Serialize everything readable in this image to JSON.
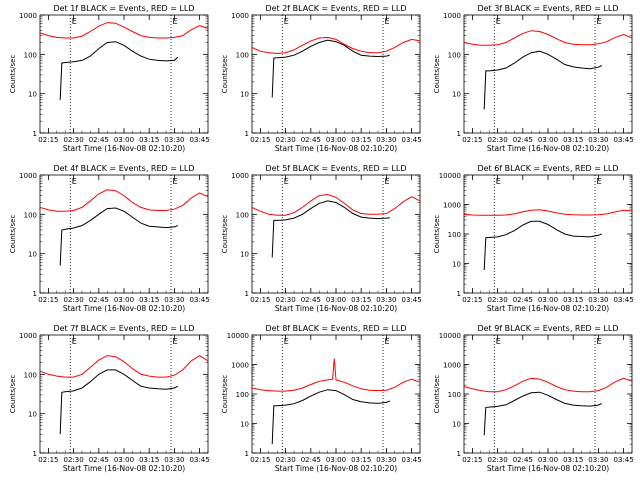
{
  "figure": {
    "background": "#ffffff",
    "colors": {
      "events": "#000000",
      "lld": "#ff0000",
      "axis": "#000000",
      "marker": "#000000"
    },
    "xlabel": "Start Time (16-Nov-08 02:10:20)",
    "ylabel": "Counts/sec",
    "xticks": [
      "02:15",
      "02:30",
      "02:45",
      "03:00",
      "03:15",
      "03:30",
      "03:45"
    ],
    "marker_labels": [
      "E",
      "E"
    ]
  },
  "chart_data": [
    {
      "type": "line",
      "title": "Det 1f BLACK = Events, RED = LLD",
      "y_scale": "log",
      "ylim": [
        1,
        1000
      ],
      "yticks": [
        "1",
        "10",
        "100",
        "1000"
      ],
      "xlim": [
        "02:10",
        "03:50"
      ],
      "event_markers": [
        "02:28",
        "03:28"
      ],
      "series": [
        {
          "name": "LLD",
          "color": "#ff0000",
          "x": [
            "02:10",
            "02:15",
            "02:20",
            "02:25",
            "02:30",
            "02:35",
            "02:40",
            "02:45",
            "02:50",
            "02:55",
            "03:00",
            "03:05",
            "03:10",
            "03:15",
            "03:20",
            "03:25",
            "03:30",
            "03:35",
            "03:40",
            "03:45",
            "03:50"
          ],
          "values": [
            350,
            300,
            270,
            260,
            260,
            290,
            380,
            520,
            640,
            620,
            490,
            380,
            300,
            270,
            260,
            260,
            270,
            300,
            420,
            540,
            450
          ]
        },
        {
          "name": "Events",
          "color": "#000000",
          "x": [
            "02:22",
            "02:23",
            "02:25",
            "02:30",
            "02:35",
            "02:40",
            "02:45",
            "02:50",
            "02:55",
            "03:00",
            "03:05",
            "03:10",
            "03:15",
            "03:20",
            "03:25",
            "03:30",
            "03:32"
          ],
          "values": [
            7,
            60,
            62,
            65,
            70,
            90,
            140,
            200,
            210,
            170,
            120,
            90,
            75,
            70,
            68,
            70,
            85
          ]
        }
      ]
    },
    {
      "type": "line",
      "title": "Det 2f BLACK = Events, RED = LLD",
      "y_scale": "log",
      "ylim": [
        1,
        1000
      ],
      "yticks": [
        "1",
        "10",
        "100",
        "1000"
      ],
      "xlim": [
        "02:10",
        "03:50"
      ],
      "event_markers": [
        "02:28",
        "03:28"
      ],
      "series": [
        {
          "name": "LLD",
          "color": "#ff0000",
          "x": [
            "02:10",
            "02:15",
            "02:20",
            "02:25",
            "02:30",
            "02:35",
            "02:40",
            "02:45",
            "02:50",
            "02:55",
            "03:00",
            "03:05",
            "03:10",
            "03:15",
            "03:20",
            "03:25",
            "03:30",
            "03:35",
            "03:40",
            "03:45",
            "03:50"
          ],
          "values": [
            150,
            120,
            110,
            105,
            110,
            130,
            170,
            220,
            260,
            270,
            240,
            180,
            140,
            120,
            110,
            110,
            120,
            150,
            200,
            240,
            220
          ]
        },
        {
          "name": "Events",
          "color": "#000000",
          "x": [
            "02:22",
            "02:23",
            "02:25",
            "02:30",
            "02:35",
            "02:40",
            "02:45",
            "02:50",
            "02:55",
            "03:00",
            "03:05",
            "03:10",
            "03:15",
            "03:20",
            "03:25",
            "03:30",
            "03:32"
          ],
          "values": [
            8,
            80,
            82,
            85,
            95,
            120,
            160,
            200,
            230,
            210,
            170,
            120,
            95,
            90,
            88,
            90,
            95
          ]
        }
      ]
    },
    {
      "type": "line",
      "title": "Det 3f BLACK = Events, RED = LLD",
      "y_scale": "log",
      "ylim": [
        1,
        1000
      ],
      "yticks": [
        "1",
        "10",
        "100",
        "1000"
      ],
      "xlim": [
        "02:10",
        "03:50"
      ],
      "event_markers": [
        "02:28",
        "03:28"
      ],
      "series": [
        {
          "name": "LLD",
          "color": "#ff0000",
          "x": [
            "02:10",
            "02:15",
            "02:20",
            "02:25",
            "02:30",
            "02:35",
            "02:40",
            "02:45",
            "02:50",
            "02:55",
            "03:00",
            "03:05",
            "03:10",
            "03:15",
            "03:20",
            "03:25",
            "03:30",
            "03:35",
            "03:40",
            "03:45",
            "03:50"
          ],
          "values": [
            200,
            180,
            170,
            170,
            175,
            200,
            260,
            340,
            400,
            380,
            320,
            250,
            200,
            180,
            175,
            175,
            185,
            210,
            270,
            320,
            260
          ]
        },
        {
          "name": "Events",
          "color": "#000000",
          "x": [
            "02:22",
            "02:23",
            "02:25",
            "02:30",
            "02:35",
            "02:40",
            "02:45",
            "02:50",
            "02:55",
            "03:00",
            "03:05",
            "03:10",
            "03:15",
            "03:20",
            "03:25",
            "03:30",
            "03:32"
          ],
          "values": [
            4,
            38,
            38,
            40,
            45,
            60,
            85,
            110,
            120,
            100,
            75,
            55,
            48,
            45,
            43,
            47,
            52
          ]
        }
      ]
    },
    {
      "type": "line",
      "title": "Det 4f BLACK = Events, RED = LLD",
      "y_scale": "log",
      "ylim": [
        1,
        1000
      ],
      "yticks": [
        "1",
        "10",
        "100",
        "1000"
      ],
      "xlim": [
        "02:10",
        "03:50"
      ],
      "event_markers": [
        "02:28",
        "03:28"
      ],
      "series": [
        {
          "name": "LLD",
          "color": "#ff0000",
          "x": [
            "02:10",
            "02:15",
            "02:20",
            "02:25",
            "02:30",
            "02:35",
            "02:40",
            "02:45",
            "02:50",
            "02:55",
            "03:00",
            "03:05",
            "03:10",
            "03:15",
            "03:20",
            "03:25",
            "03:30",
            "03:35",
            "03:40",
            "03:45",
            "03:50"
          ],
          "values": [
            150,
            130,
            120,
            120,
            125,
            150,
            220,
            330,
            420,
            400,
            300,
            200,
            150,
            130,
            125,
            125,
            135,
            170,
            260,
            350,
            280
          ]
        },
        {
          "name": "Events",
          "color": "#000000",
          "x": [
            "02:22",
            "02:23",
            "02:25",
            "02:30",
            "02:35",
            "02:40",
            "02:45",
            "02:50",
            "02:55",
            "03:00",
            "03:05",
            "03:10",
            "03:15",
            "03:20",
            "03:25",
            "03:30",
            "03:32"
          ],
          "values": [
            5,
            40,
            42,
            45,
            52,
            70,
            100,
            140,
            145,
            120,
            85,
            60,
            50,
            48,
            46,
            48,
            52
          ]
        }
      ]
    },
    {
      "type": "line",
      "title": "Det 5f BLACK = Events, RED = LLD",
      "y_scale": "log",
      "ylim": [
        1,
        1000
      ],
      "yticks": [
        "1",
        "10",
        "100",
        "1000"
      ],
      "xlim": [
        "02:10",
        "03:50"
      ],
      "event_markers": [
        "02:28",
        "03:28"
      ],
      "series": [
        {
          "name": "LLD",
          "color": "#ff0000",
          "x": [
            "02:10",
            "02:15",
            "02:20",
            "02:25",
            "02:30",
            "02:35",
            "02:40",
            "02:45",
            "02:50",
            "02:55",
            "03:00",
            "03:05",
            "03:10",
            "03:15",
            "03:20",
            "03:25",
            "03:30",
            "03:35",
            "03:40",
            "03:45",
            "03:50"
          ],
          "values": [
            150,
            120,
            100,
            95,
            95,
            110,
            150,
            220,
            300,
            320,
            270,
            190,
            130,
            105,
            100,
            100,
            105,
            140,
            210,
            280,
            220
          ]
        },
        {
          "name": "Events",
          "color": "#000000",
          "x": [
            "02:22",
            "02:23",
            "02:25",
            "02:30",
            "02:35",
            "02:40",
            "02:45",
            "02:50",
            "02:55",
            "03:00",
            "03:05",
            "03:10",
            "03:15",
            "03:20",
            "03:25",
            "03:30",
            "03:32"
          ],
          "values": [
            8,
            70,
            70,
            72,
            80,
            100,
            140,
            190,
            220,
            200,
            150,
            105,
            85,
            80,
            78,
            80,
            82
          ]
        }
      ]
    },
    {
      "type": "line",
      "title": "Det 6f BLACK = Events, RED = LLD",
      "y_scale": "log",
      "ylim": [
        1,
        10000
      ],
      "yticks": [
        "1",
        "10",
        "100",
        "1000",
        "10000"
      ],
      "xlim": [
        "02:10",
        "03:50"
      ],
      "event_markers": [
        "02:28",
        "03:28"
      ],
      "series": [
        {
          "name": "LLD",
          "color": "#ff0000",
          "x": [
            "02:10",
            "02:15",
            "02:20",
            "02:25",
            "02:30",
            "02:35",
            "02:40",
            "02:45",
            "02:50",
            "02:55",
            "03:00",
            "03:05",
            "03:10",
            "03:15",
            "03:20",
            "03:25",
            "03:30",
            "03:35",
            "03:40",
            "03:45",
            "03:50"
          ],
          "values": [
            460,
            440,
            430,
            430,
            430,
            440,
            480,
            560,
            640,
            660,
            600,
            520,
            470,
            450,
            440,
            440,
            450,
            480,
            560,
            640,
            600
          ]
        },
        {
          "name": "Events",
          "color": "#000000",
          "x": [
            "02:22",
            "02:23",
            "02:25",
            "02:30",
            "02:35",
            "02:40",
            "02:45",
            "02:50",
            "02:55",
            "03:00",
            "03:05",
            "03:10",
            "03:15",
            "03:20",
            "03:25",
            "03:30",
            "03:32"
          ],
          "values": [
            6,
            75,
            76,
            80,
            95,
            130,
            200,
            270,
            270,
            210,
            140,
            100,
            85,
            82,
            80,
            90,
            100
          ]
        }
      ]
    },
    {
      "type": "line",
      "title": "Det 7f BLACK = Events, RED = LLD",
      "y_scale": "log",
      "ylim": [
        1,
        1000
      ],
      "yticks": [
        "1",
        "10",
        "100",
        "1000"
      ],
      "xlim": [
        "02:10",
        "03:50"
      ],
      "event_markers": [
        "02:28",
        "03:28"
      ],
      "series": [
        {
          "name": "LLD",
          "color": "#ff0000",
          "x": [
            "02:10",
            "02:15",
            "02:20",
            "02:25",
            "02:30",
            "02:35",
            "02:40",
            "02:45",
            "02:50",
            "02:55",
            "03:00",
            "03:05",
            "03:10",
            "03:15",
            "03:20",
            "03:25",
            "03:30",
            "03:35",
            "03:40",
            "03:45",
            "03:50"
          ],
          "values": [
            120,
            100,
            90,
            85,
            85,
            100,
            150,
            230,
            300,
            280,
            210,
            140,
            100,
            90,
            85,
            85,
            95,
            130,
            220,
            300,
            220
          ]
        },
        {
          "name": "Events",
          "color": "#000000",
          "x": [
            "02:22",
            "02:23",
            "02:25",
            "02:30",
            "02:35",
            "02:40",
            "02:45",
            "02:50",
            "02:55",
            "03:00",
            "03:05",
            "03:10",
            "03:15",
            "03:20",
            "03:25",
            "03:30",
            "03:32"
          ],
          "values": [
            3,
            35,
            36,
            38,
            45,
            65,
            100,
            130,
            130,
            100,
            70,
            50,
            45,
            43,
            42,
            45,
            50
          ]
        }
      ]
    },
    {
      "type": "line",
      "title": "Det 8f BLACK = Events, RED = LLD",
      "y_scale": "log",
      "ylim": [
        1,
        10000
      ],
      "yticks": [
        "1",
        "10",
        "100",
        "1000",
        "10000"
      ],
      "xlim": [
        "02:10",
        "03:50"
      ],
      "event_markers": [
        "02:28",
        "03:28"
      ],
      "series": [
        {
          "name": "LLD",
          "color": "#ff0000",
          "x": [
            "02:10",
            "02:15",
            "02:20",
            "02:25",
            "02:30",
            "02:35",
            "02:40",
            "02:45",
            "02:50",
            "02:55",
            "02:58",
            "02:59",
            "03:00",
            "03:05",
            "03:10",
            "03:15",
            "03:20",
            "03:25",
            "03:30",
            "03:35",
            "03:40",
            "03:45",
            "03:50"
          ],
          "values": [
            160,
            140,
            130,
            125,
            125,
            135,
            160,
            210,
            270,
            300,
            320,
            1600,
            300,
            250,
            190,
            150,
            135,
            130,
            135,
            170,
            250,
            320,
            250
          ]
        },
        {
          "name": "Events",
          "color": "#000000",
          "x": [
            "02:22",
            "02:23",
            "02:25",
            "02:30",
            "02:35",
            "02:40",
            "02:45",
            "02:50",
            "02:55",
            "03:00",
            "03:05",
            "03:10",
            "03:15",
            "03:20",
            "03:25",
            "03:30",
            "03:32"
          ],
          "values": [
            2,
            40,
            40,
            42,
            47,
            60,
            85,
            115,
            140,
            130,
            95,
            65,
            55,
            50,
            48,
            52,
            58
          ]
        }
      ]
    },
    {
      "type": "line",
      "title": "Det 9f BLACK = Events, RED = LLD",
      "y_scale": "log",
      "ylim": [
        1,
        10000
      ],
      "yticks": [
        "1",
        "10",
        "100",
        "1000",
        "10000"
      ],
      "xlim": [
        "02:10",
        "03:50"
      ],
      "event_markers": [
        "02:28",
        "03:28"
      ],
      "series": [
        {
          "name": "LLD",
          "color": "#ff0000",
          "x": [
            "02:10",
            "02:15",
            "02:20",
            "02:25",
            "02:30",
            "02:35",
            "02:40",
            "02:45",
            "02:50",
            "02:55",
            "03:00",
            "03:05",
            "03:10",
            "03:15",
            "03:20",
            "03:25",
            "03:30",
            "03:35",
            "03:40",
            "03:45",
            "03:50"
          ],
          "values": [
            180,
            150,
            130,
            120,
            120,
            140,
            190,
            270,
            340,
            320,
            250,
            180,
            140,
            125,
            120,
            120,
            130,
            170,
            260,
            340,
            270
          ]
        },
        {
          "name": "Events",
          "color": "#000000",
          "x": [
            "02:22",
            "02:23",
            "02:25",
            "02:30",
            "02:35",
            "02:40",
            "02:45",
            "02:50",
            "02:55",
            "03:00",
            "03:05",
            "03:10",
            "03:15",
            "03:20",
            "03:25",
            "03:30",
            "03:32"
          ],
          "values": [
            4,
            35,
            36,
            38,
            43,
            60,
            85,
            110,
            115,
            90,
            65,
            48,
            42,
            40,
            39,
            42,
            48
          ]
        }
      ]
    }
  ]
}
